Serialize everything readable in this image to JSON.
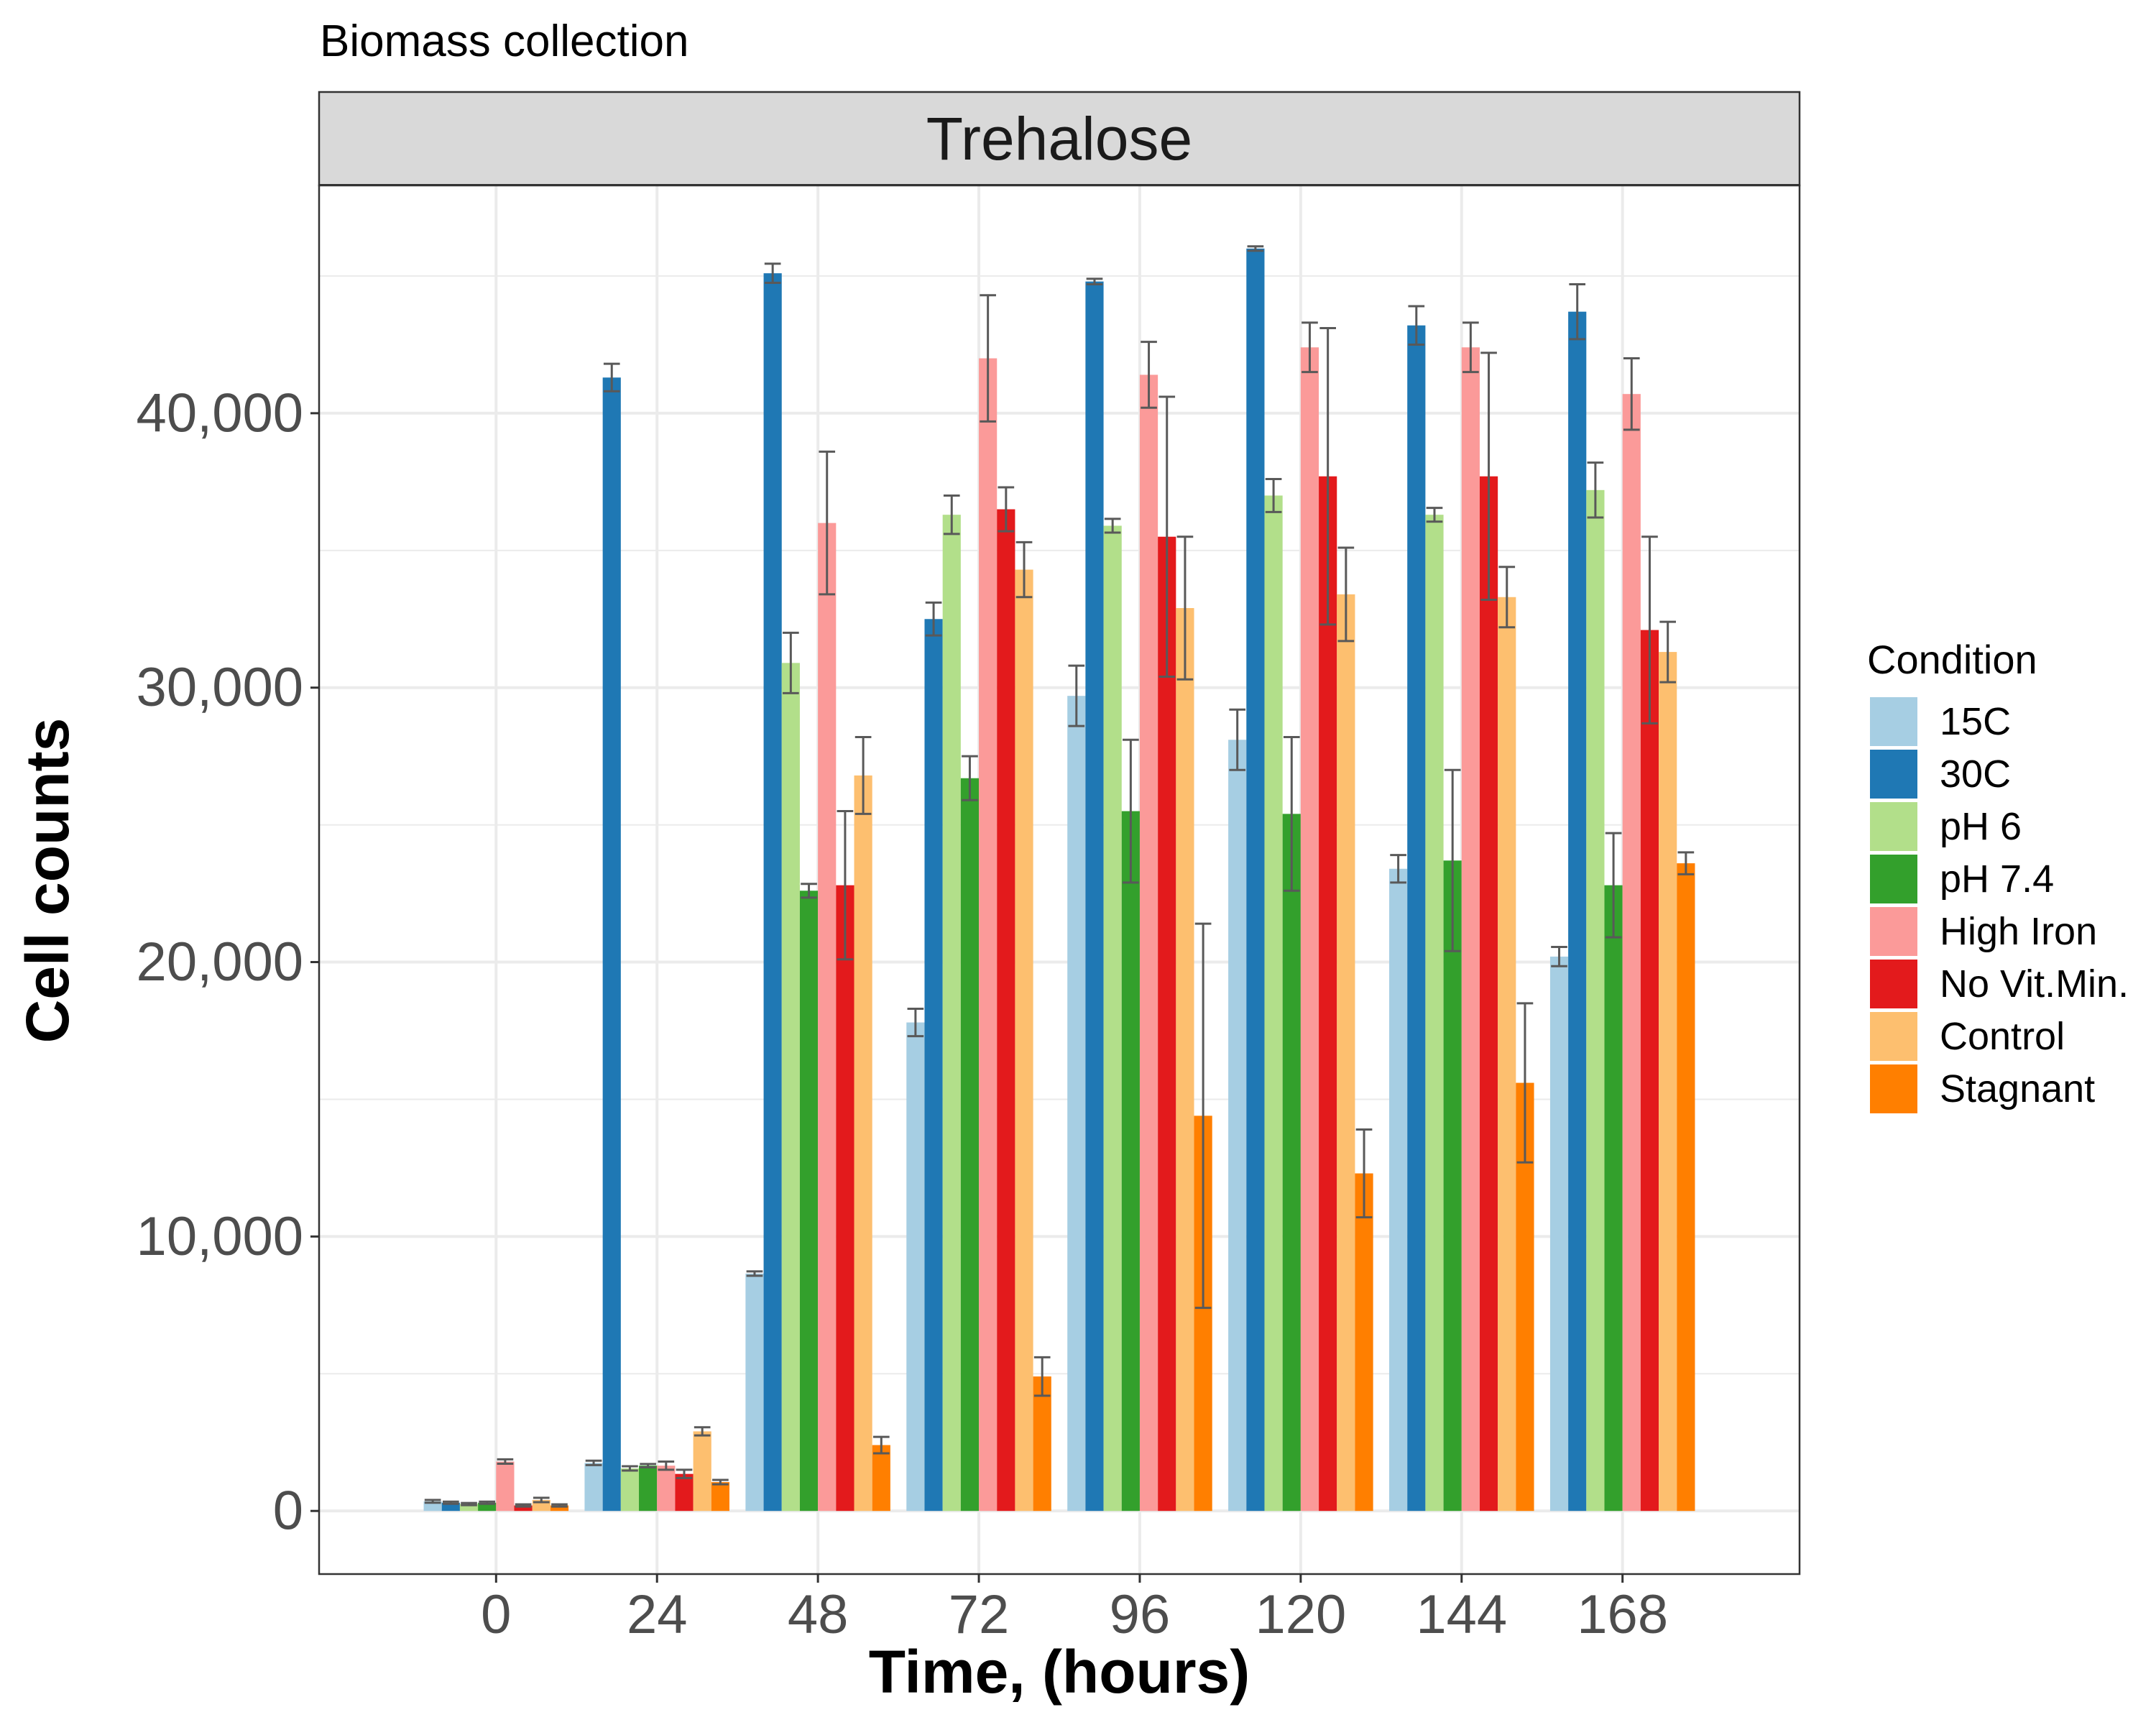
{
  "chart_data": {
    "type": "bar",
    "subtitle": "Biomass collection",
    "facet_label": "Trehalose",
    "xlabel": "Time, (hours)",
    "ylabel": "Cell counts",
    "categories": [
      "0",
      "24",
      "48",
      "72",
      "96",
      "120",
      "144",
      "168"
    ],
    "y_ticks": [
      0,
      10000,
      20000,
      30000,
      40000
    ],
    "y_tick_labels": [
      "0",
      "10,000",
      "20,000",
      "30,000",
      "40,000"
    ],
    "ylim": [
      -2300,
      48300
    ],
    "grid": true,
    "legend": {
      "title": "Condition",
      "position": "right"
    },
    "series": [
      {
        "name": "15C",
        "color": "#A6CEE3",
        "values": [
          350,
          1750,
          8650,
          17800,
          29700,
          28100,
          23400,
          20200
        ],
        "errors": [
          50,
          80,
          80,
          500,
          1100,
          1100,
          500,
          350
        ]
      },
      {
        "name": "30C",
        "color": "#1F78B4",
        "values": [
          300,
          41300,
          45100,
          32500,
          44800,
          46000,
          43200,
          43700
        ],
        "errors": [
          40,
          500,
          350,
          600,
          100,
          80,
          700,
          1000
        ]
      },
      {
        "name": "pH 6",
        "color": "#B2DF8A",
        "values": [
          250,
          1550,
          30900,
          36300,
          35900,
          37000,
          36300,
          37200
        ],
        "errors": [
          40,
          80,
          1100,
          700,
          250,
          600,
          250,
          1000
        ]
      },
      {
        "name": "pH 7.4",
        "color": "#33A02C",
        "values": [
          300,
          1650,
          22600,
          26700,
          25500,
          25400,
          23700,
          22800
        ],
        "errors": [
          40,
          60,
          250,
          800,
          2600,
          2800,
          3300,
          1900
        ]
      },
      {
        "name": "High Iron",
        "color": "#FB9A99",
        "values": [
          1800,
          1650,
          36000,
          42000,
          41400,
          42400,
          42400,
          40700
        ],
        "errors": [
          80,
          150,
          2600,
          2300,
          1200,
          900,
          900,
          1300
        ]
      },
      {
        "name": "No Vit.Min.",
        "color": "#E31A1C",
        "values": [
          200,
          1350,
          22800,
          36500,
          35500,
          37700,
          37700,
          32100
        ],
        "errors": [
          40,
          150,
          2700,
          800,
          5100,
          5400,
          4500,
          3400
        ]
      },
      {
        "name": "Control",
        "color": "#FDBF6F",
        "values": [
          400,
          2900,
          26800,
          34300,
          32900,
          33400,
          33300,
          31300
        ],
        "errors": [
          80,
          150,
          1400,
          1000,
          2600,
          1700,
          1100,
          1100
        ]
      },
      {
        "name": "Stagnant",
        "color": "#FF7F00",
        "values": [
          200,
          1050,
          2400,
          4900,
          14400,
          12300,
          15600,
          23600
        ],
        "errors": [
          40,
          80,
          300,
          700,
          7000,
          1600,
          2900,
          400
        ]
      }
    ]
  }
}
